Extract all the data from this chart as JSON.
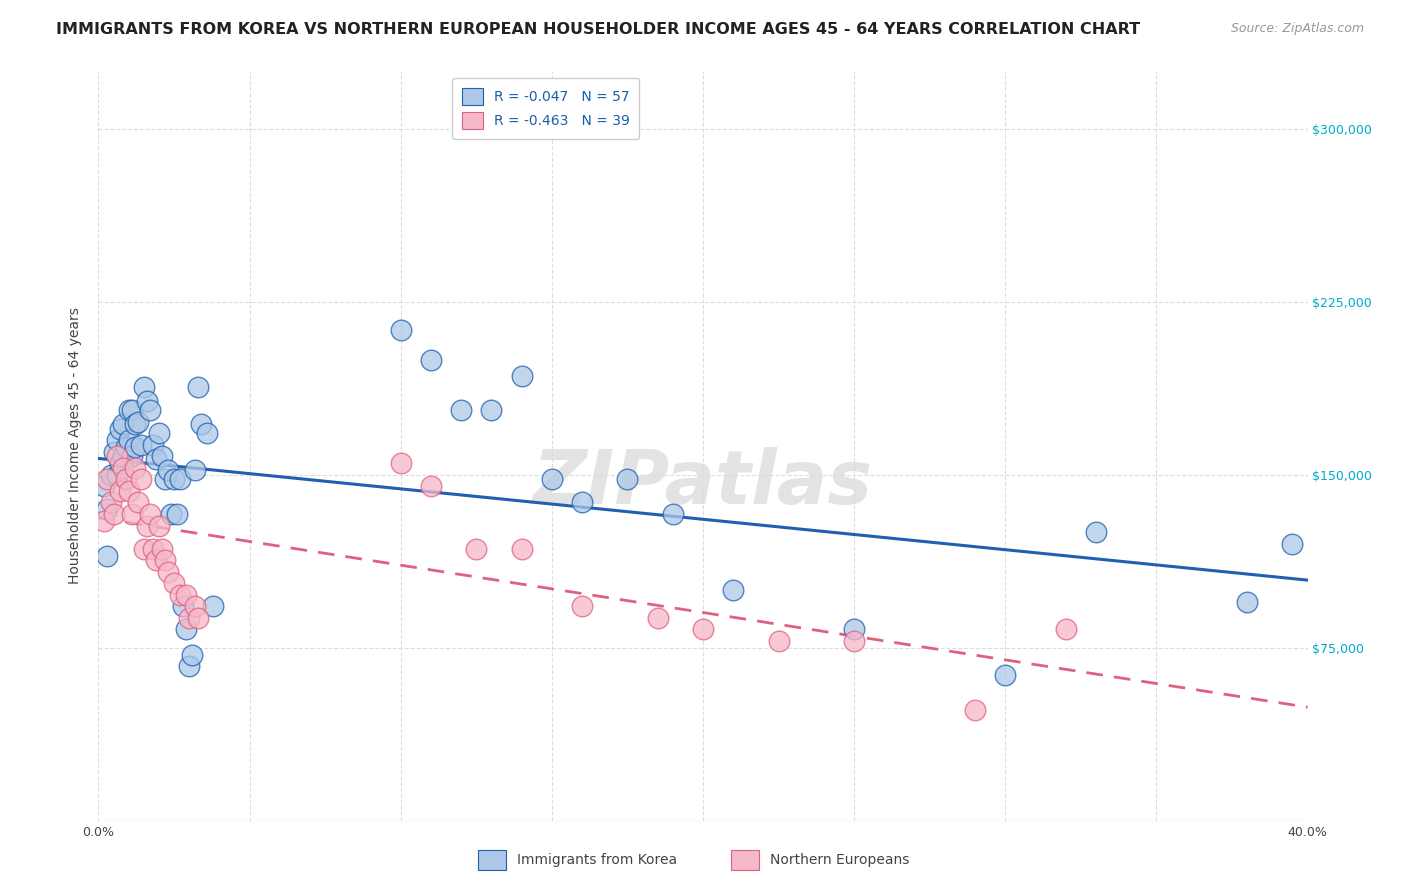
{
  "title": "IMMIGRANTS FROM KOREA VS NORTHERN EUROPEAN HOUSEHOLDER INCOME AGES 45 - 64 YEARS CORRELATION CHART",
  "source": "Source: ZipAtlas.com",
  "ylabel": "Householder Income Ages 45 - 64 years",
  "xmin": 0.0,
  "xmax": 0.4,
  "ymin": 0,
  "ymax": 325000,
  "yticks": [
    0,
    75000,
    150000,
    225000,
    300000
  ],
  "ytick_labels": [
    "",
    "$75,000",
    "$150,000",
    "$225,000",
    "$300,000"
  ],
  "xticks": [
    0.0,
    0.05,
    0.1,
    0.15,
    0.2,
    0.25,
    0.3,
    0.35,
    0.4
  ],
  "legend_korea": "R = -0.047   N = 57",
  "legend_northern": "R = -0.463   N = 39",
  "label_korea": "Immigrants from Korea",
  "label_northern": "Northern Europeans",
  "korea_color": "#adc8e8",
  "northern_color": "#f5b8c8",
  "korea_line_color": "#2060b0",
  "northern_line_color": "#e06080",
  "korea_x": [
    0.002,
    0.003,
    0.003,
    0.004,
    0.005,
    0.006,
    0.006,
    0.007,
    0.007,
    0.008,
    0.008,
    0.009,
    0.01,
    0.01,
    0.011,
    0.011,
    0.012,
    0.012,
    0.013,
    0.014,
    0.015,
    0.016,
    0.017,
    0.018,
    0.019,
    0.02,
    0.021,
    0.022,
    0.023,
    0.024,
    0.025,
    0.026,
    0.027,
    0.028,
    0.029,
    0.03,
    0.031,
    0.032,
    0.033,
    0.034,
    0.036,
    0.038,
    0.1,
    0.11,
    0.12,
    0.13,
    0.14,
    0.15,
    0.16,
    0.175,
    0.19,
    0.21,
    0.25,
    0.3,
    0.33,
    0.38,
    0.395
  ],
  "korea_y": [
    145000,
    135000,
    115000,
    150000,
    160000,
    165000,
    150000,
    170000,
    155000,
    172000,
    158000,
    162000,
    178000,
    165000,
    178000,
    158000,
    172000,
    162000,
    173000,
    163000,
    188000,
    182000,
    178000,
    163000,
    157000,
    168000,
    158000,
    148000,
    152000,
    133000,
    148000,
    133000,
    148000,
    93000,
    83000,
    67000,
    72000,
    152000,
    188000,
    172000,
    168000,
    93000,
    213000,
    200000,
    178000,
    178000,
    193000,
    148000,
    138000,
    148000,
    133000,
    100000,
    83000,
    63000,
    125000,
    95000,
    120000
  ],
  "northern_x": [
    0.002,
    0.003,
    0.004,
    0.005,
    0.006,
    0.007,
    0.008,
    0.009,
    0.01,
    0.011,
    0.012,
    0.013,
    0.014,
    0.015,
    0.016,
    0.017,
    0.018,
    0.019,
    0.02,
    0.021,
    0.022,
    0.023,
    0.025,
    0.027,
    0.029,
    0.03,
    0.032,
    0.033,
    0.1,
    0.11,
    0.125,
    0.14,
    0.16,
    0.185,
    0.2,
    0.225,
    0.25,
    0.29,
    0.32
  ],
  "northern_y": [
    130000,
    148000,
    138000,
    133000,
    158000,
    143000,
    153000,
    148000,
    143000,
    133000,
    153000,
    138000,
    148000,
    118000,
    128000,
    133000,
    118000,
    113000,
    128000,
    118000,
    113000,
    108000,
    103000,
    98000,
    98000,
    88000,
    93000,
    88000,
    155000,
    145000,
    118000,
    118000,
    93000,
    88000,
    83000,
    78000,
    78000,
    48000,
    83000
  ],
  "background_color": "#ffffff",
  "grid_color": "#dddddd",
  "title_fontsize": 11.5,
  "axis_label_fontsize": 10,
  "tick_fontsize": 9,
  "legend_fontsize": 10,
  "ytick_color": "#00aacc",
  "text_color": "#444444",
  "source_color": "#999999"
}
